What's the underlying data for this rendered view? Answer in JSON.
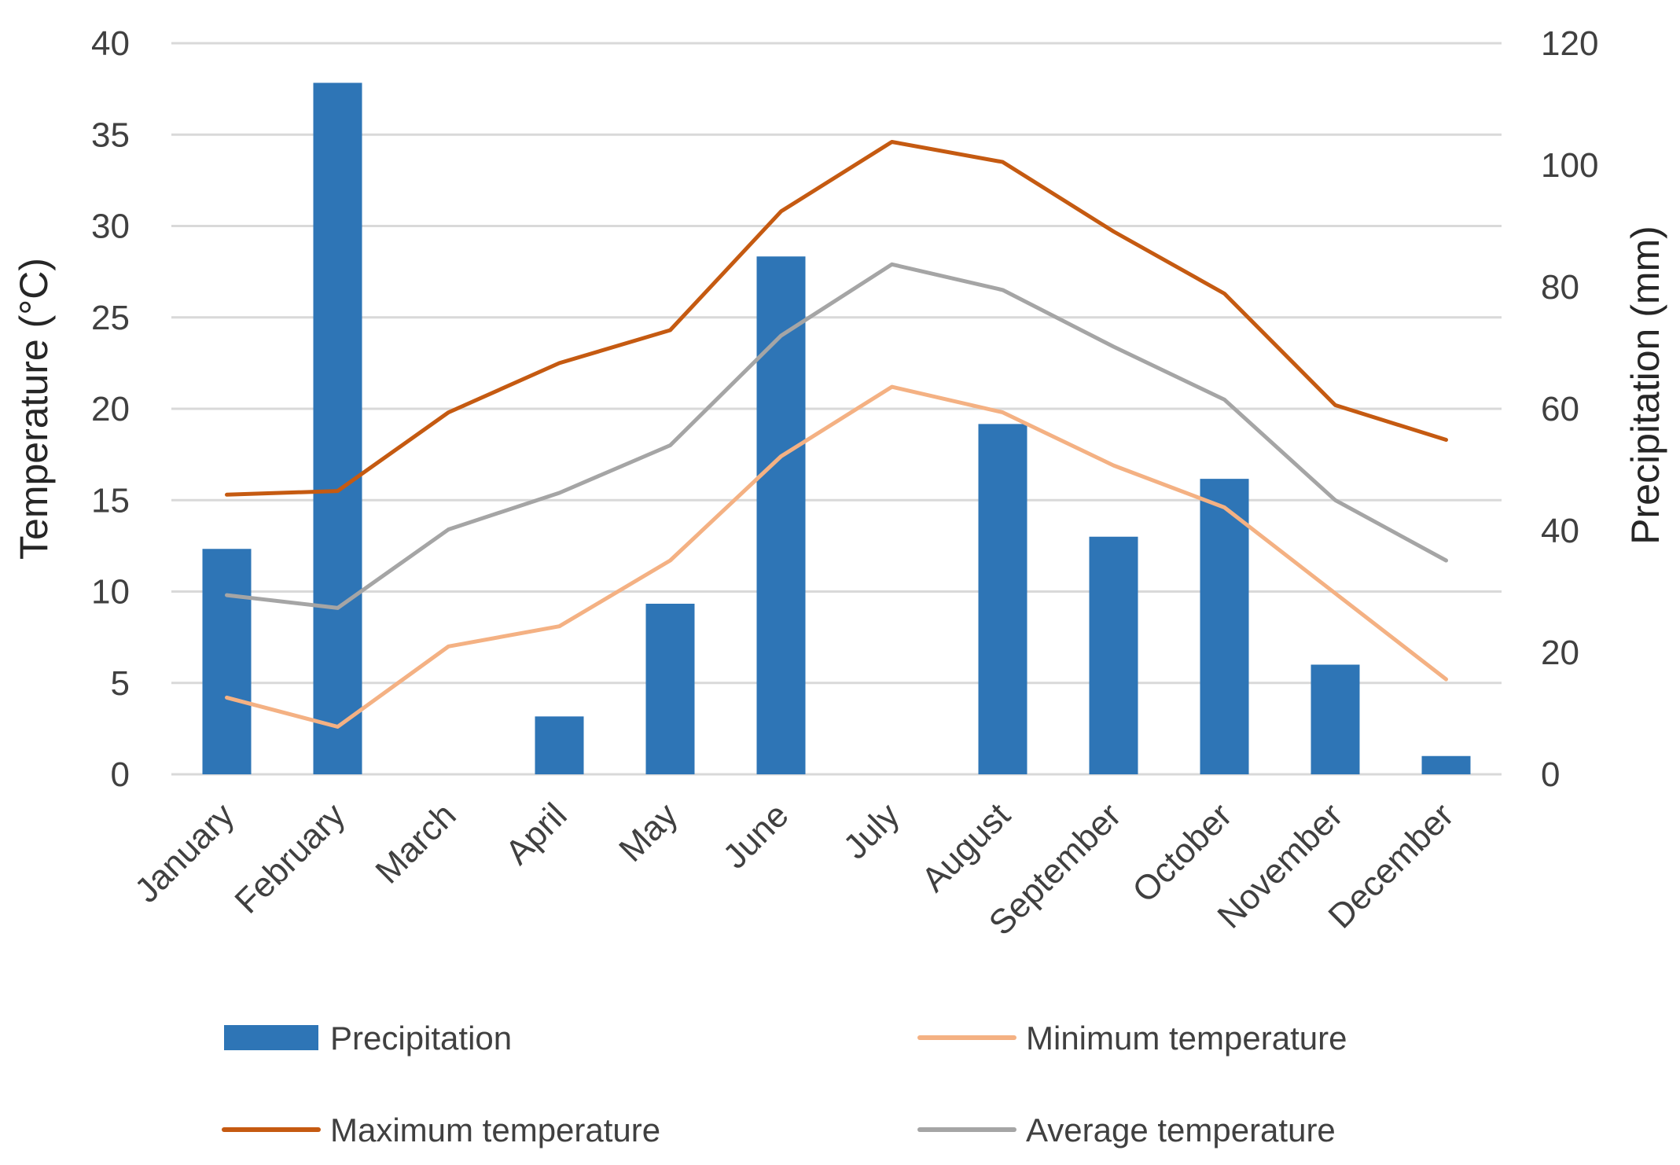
{
  "chart_data": {
    "type": "bar",
    "categories": [
      "January",
      "February",
      "March",
      "April",
      "May",
      "June",
      "July",
      "August",
      "September",
      "October",
      "November",
      "December"
    ],
    "y_left": {
      "label": "Temperature (°C)",
      "ylim": [
        0,
        40
      ],
      "ticks": [
        0,
        5,
        10,
        15,
        20,
        25,
        30,
        35,
        40
      ]
    },
    "y_right": {
      "label": "Precipitation (mm)",
      "ylim": [
        0,
        120
      ],
      "ticks": [
        0,
        20,
        40,
        60,
        80,
        100,
        120
      ]
    },
    "grid": true,
    "legend": "bottom",
    "series": [
      {
        "name": "Precipitation",
        "type": "bar",
        "axis": "right",
        "color": "#2e75b6",
        "values": [
          37,
          113.5,
          0,
          9.5,
          28,
          85,
          0,
          57.5,
          39,
          48.5,
          18,
          3
        ]
      },
      {
        "name": "Minimum temperature",
        "type": "line",
        "axis": "left",
        "color": "#f4b183",
        "values": [
          4.2,
          2.6,
          7.0,
          8.1,
          11.7,
          17.4,
          21.2,
          19.8,
          16.9,
          14.6,
          9.9,
          5.2
        ]
      },
      {
        "name": "Maximum temperature",
        "type": "line",
        "axis": "left",
        "color": "#c55a11",
        "values": [
          15.3,
          15.5,
          19.8,
          22.5,
          24.3,
          30.8,
          34.6,
          33.5,
          29.7,
          26.3,
          20.2,
          18.3
        ]
      },
      {
        "name": "Average temperature",
        "type": "line",
        "axis": "left",
        "color": "#a5a5a5",
        "values": [
          9.8,
          9.1,
          13.4,
          15.4,
          18.0,
          24.0,
          27.9,
          26.5,
          23.4,
          20.5,
          15.0,
          11.7
        ]
      }
    ]
  }
}
